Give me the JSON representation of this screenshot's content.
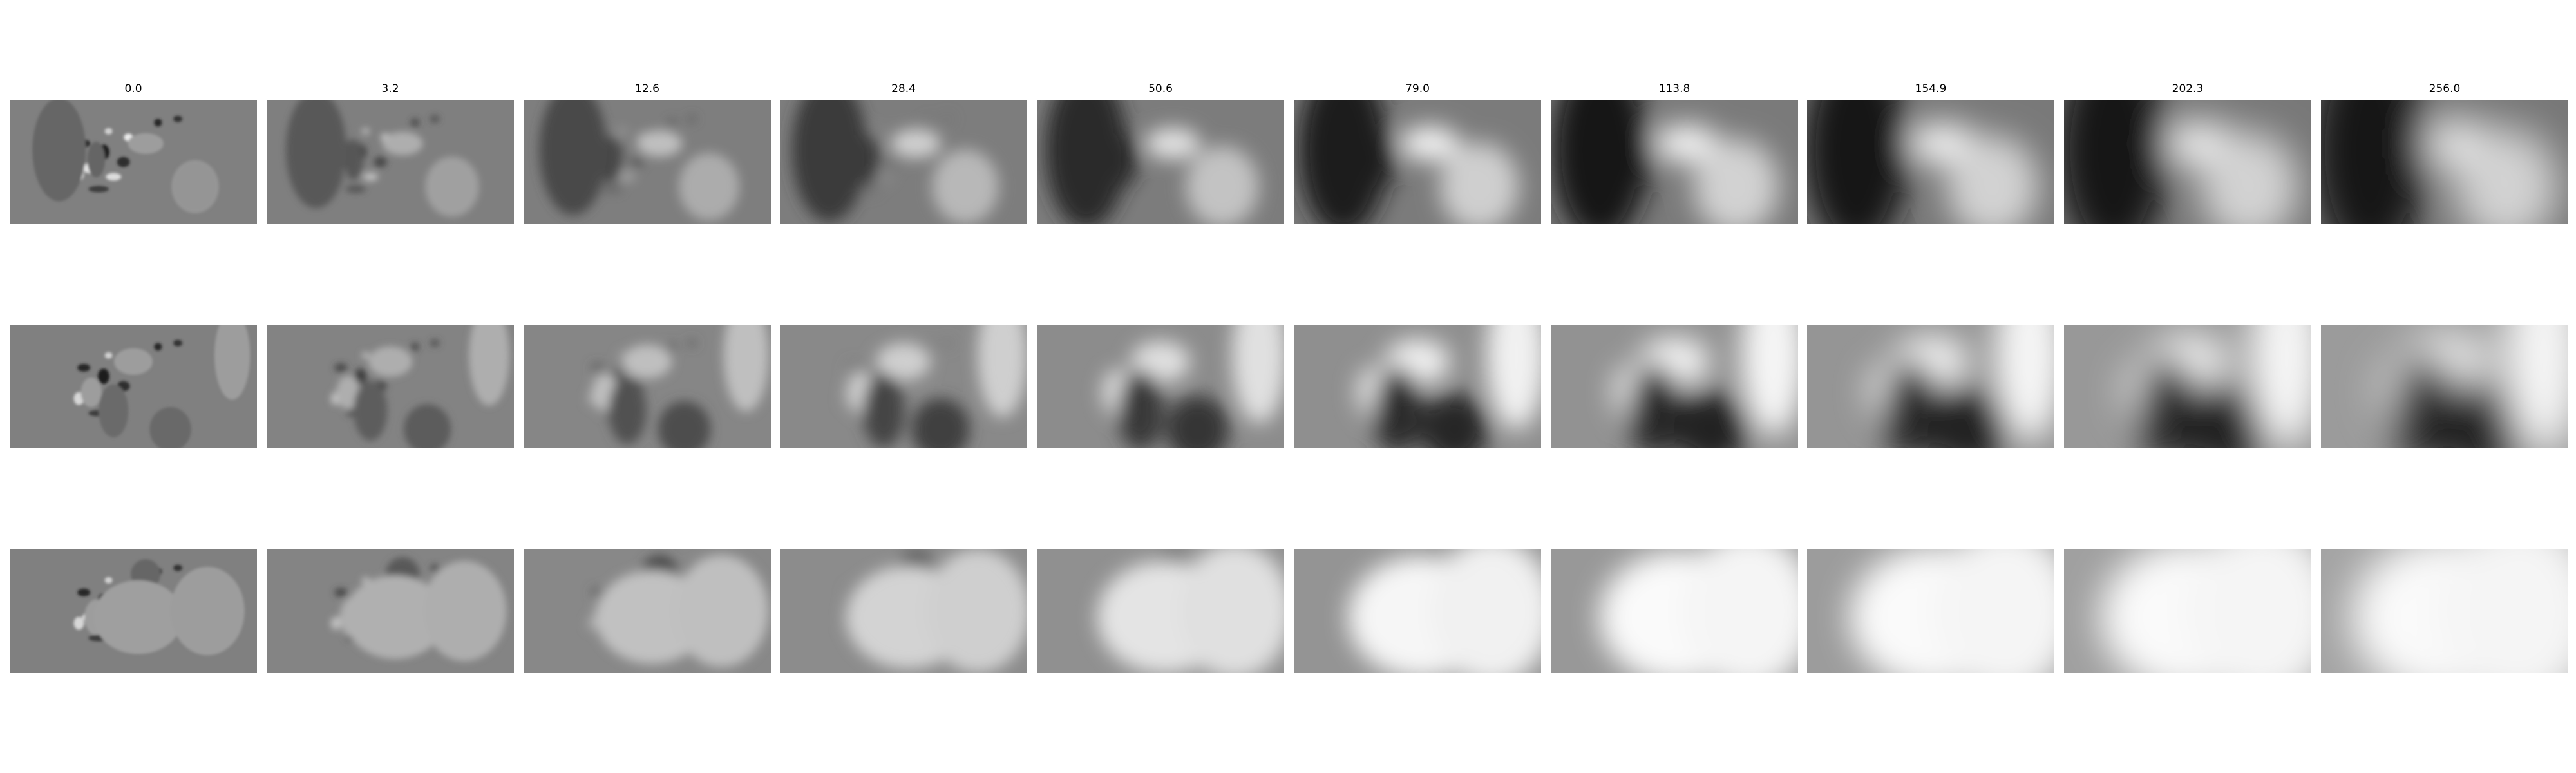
{
  "figure": {
    "column_titles": [
      "0.0",
      "3.2",
      "12.6",
      "28.4",
      "50.6",
      "79.0",
      "113.8",
      "154.9",
      "202.3",
      "256.0"
    ],
    "row_count": 3,
    "colormap": "grayscale",
    "colors": {
      "background": "#ffffff",
      "neutral_gray": "#808080",
      "text": "#000000"
    }
  }
}
